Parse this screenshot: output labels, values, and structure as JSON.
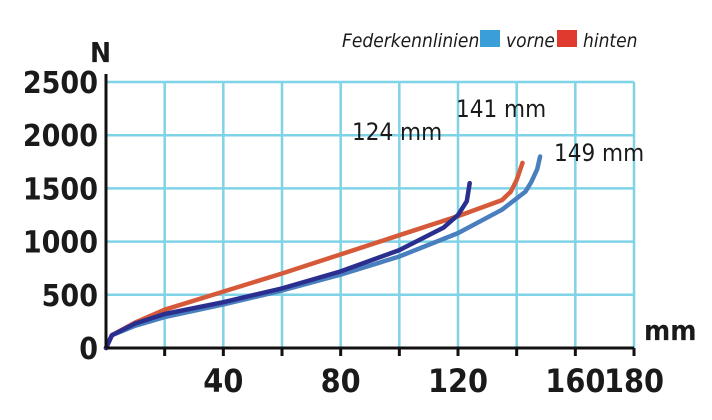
{
  "chart_data": {
    "type": "line",
    "xlabel": "mm",
    "ylabel": "N",
    "xlim": [
      0,
      180
    ],
    "ylim": [
      0,
      2500
    ],
    "x_ticks": [
      0,
      20,
      40,
      60,
      80,
      100,
      120,
      140,
      160,
      180
    ],
    "x_tick_labels": [
      "",
      "",
      "40",
      "",
      "80",
      "",
      "120",
      "",
      "160",
      "180"
    ],
    "y_ticks": [
      0,
      500,
      1000,
      1500,
      2000,
      2500
    ],
    "y_tick_labels": [
      "0",
      "500",
      "1000",
      "1500",
      "2000",
      "2500"
    ],
    "grid": true,
    "legend_title": "Federkennlinien:",
    "legend_position": "top-right",
    "legend": [
      {
        "label": "vorne",
        "color": "#3a9fd8"
      },
      {
        "label": "hinten",
        "color": "#e03a2e"
      }
    ],
    "annotations": [
      "124 mm",
      "141 mm",
      "149 mm"
    ],
    "series": [
      {
        "color": "#4a7fbf",
        "x": [
          0,
          2,
          10,
          20,
          40,
          60,
          80,
          100,
          120,
          135,
          143,
          145,
          147,
          148
        ],
        "y": [
          0,
          120,
          210,
          290,
          410,
          540,
          690,
          860,
          1080,
          1300,
          1470,
          1560,
          1680,
          1800
        ]
      },
      {
        "color": "#d65a3a",
        "x": [
          0,
          2,
          10,
          20,
          40,
          60,
          80,
          100,
          120,
          135,
          138,
          140,
          142
        ],
        "y": [
          0,
          120,
          240,
          360,
          530,
          700,
          880,
          1060,
          1240,
          1390,
          1470,
          1580,
          1740
        ]
      },
      {
        "color": "#2a2f8f",
        "x": [
          0,
          2,
          10,
          20,
          40,
          60,
          80,
          100,
          115,
          120,
          123,
          124
        ],
        "y": [
          0,
          120,
          230,
          320,
          430,
          560,
          720,
          920,
          1130,
          1250,
          1380,
          1550
        ]
      }
    ]
  }
}
